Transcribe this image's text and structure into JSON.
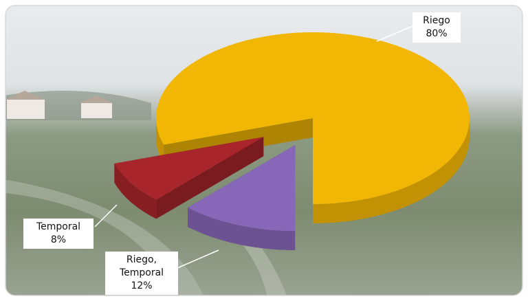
{
  "chart_data": {
    "type": "pie",
    "categories": [
      "Riego",
      "Temporal",
      "Riego, Temporal"
    ],
    "values": [
      80,
      8,
      12
    ],
    "value_labels": [
      "80%",
      "8%",
      "12%"
    ],
    "colors": [
      "#f2b705",
      "#a8262b",
      "#8767b8"
    ]
  }
}
